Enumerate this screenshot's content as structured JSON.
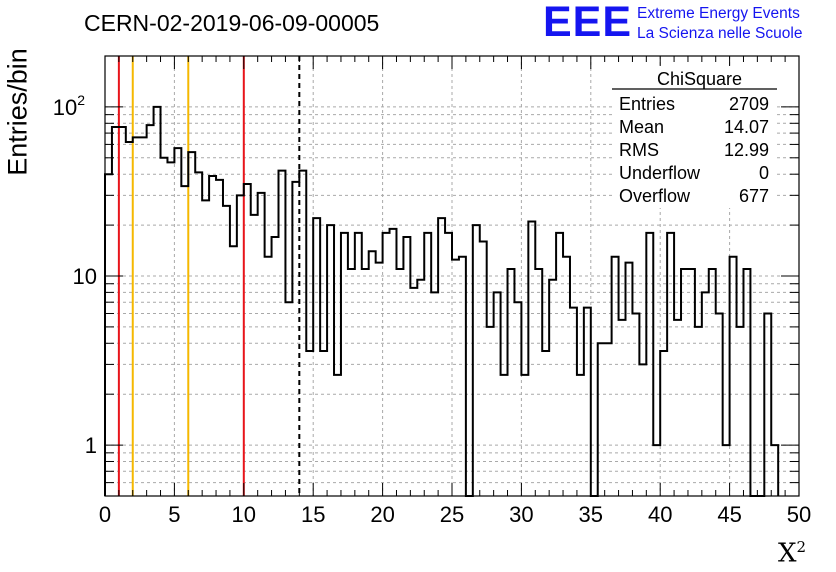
{
  "header": {
    "run_id": "CERN-02-2019-06-09-00005",
    "logo_letters": "EEE",
    "logo_line1": "Extreme Energy Events",
    "logo_line2": "La Scienza nelle Scuole"
  },
  "stats": {
    "name": "ChiSquare",
    "rows": [
      {
        "label": "Entries",
        "value": "2709"
      },
      {
        "label": "Mean",
        "value": "14.07"
      },
      {
        "label": "RMS",
        "value": "12.99"
      },
      {
        "label": "Underflow",
        "value": "0"
      },
      {
        "label": "Overflow",
        "value": "677"
      }
    ]
  },
  "colors": {
    "histogram": "#000000",
    "red_line": "#e8141a",
    "orange_line": "#f5b800",
    "dashed_line": "#000000",
    "grid": "#a9a9a9",
    "logo": "#1515f0"
  },
  "chart_data": {
    "type": "histogram",
    "title": "CERN-02-2019-06-09-00005",
    "xlabel": "X",
    "xlabel_sup": "2",
    "ylabel": "Entries/bin",
    "xlim": [
      0,
      50
    ],
    "ylim": [
      0.5,
      200
    ],
    "y_scale": "log",
    "grid": true,
    "bin_width": 0.5,
    "x_ticks": [
      0,
      5,
      10,
      15,
      20,
      25,
      30,
      35,
      40,
      45,
      50
    ],
    "x_tick_labels": [
      "0",
      "5",
      "10",
      "15",
      "20",
      "25",
      "30",
      "35",
      "40",
      "45",
      "50"
    ],
    "y_tick_labels": [
      {
        "value": 1,
        "label": "1"
      },
      {
        "value": 10,
        "label": "10"
      },
      {
        "value": 100,
        "label": "10",
        "sup": "2"
      }
    ],
    "values": [
      40,
      76,
      76,
      62,
      66,
      66,
      78,
      100,
      50,
      47,
      57,
      34,
      54,
      41,
      28,
      39,
      37,
      26,
      15,
      30,
      35,
      23,
      31,
      13,
      17,
      42,
      7,
      36,
      42,
      3.6,
      22,
      3.6,
      20,
      2.6,
      18,
      11,
      18,
      11,
      14,
      12,
      18,
      19,
      11,
      17,
      8.5,
      9.5,
      18,
      8,
      22,
      18,
      12.5,
      13,
      0.5,
      20,
      16,
      5,
      8,
      2.6,
      11,
      7,
      2.6,
      21,
      11,
      3.6,
      9.5,
      18,
      13,
      6.5,
      2.6,
      6.5,
      0.5,
      4,
      4,
      13,
      5.5,
      12,
      6,
      3,
      18,
      1,
      3.6,
      18,
      5.5,
      11,
      11,
      5,
      8,
      11,
      6,
      1,
      13,
      5,
      11,
      0.5,
      0.5,
      6,
      1
    ],
    "vertical_lines": [
      {
        "x": 1,
        "style": "red"
      },
      {
        "x": 2,
        "style": "orange"
      },
      {
        "x": 6,
        "style": "orange"
      },
      {
        "x": 10,
        "style": "red"
      },
      {
        "x": 14,
        "style": "dashed"
      }
    ]
  }
}
